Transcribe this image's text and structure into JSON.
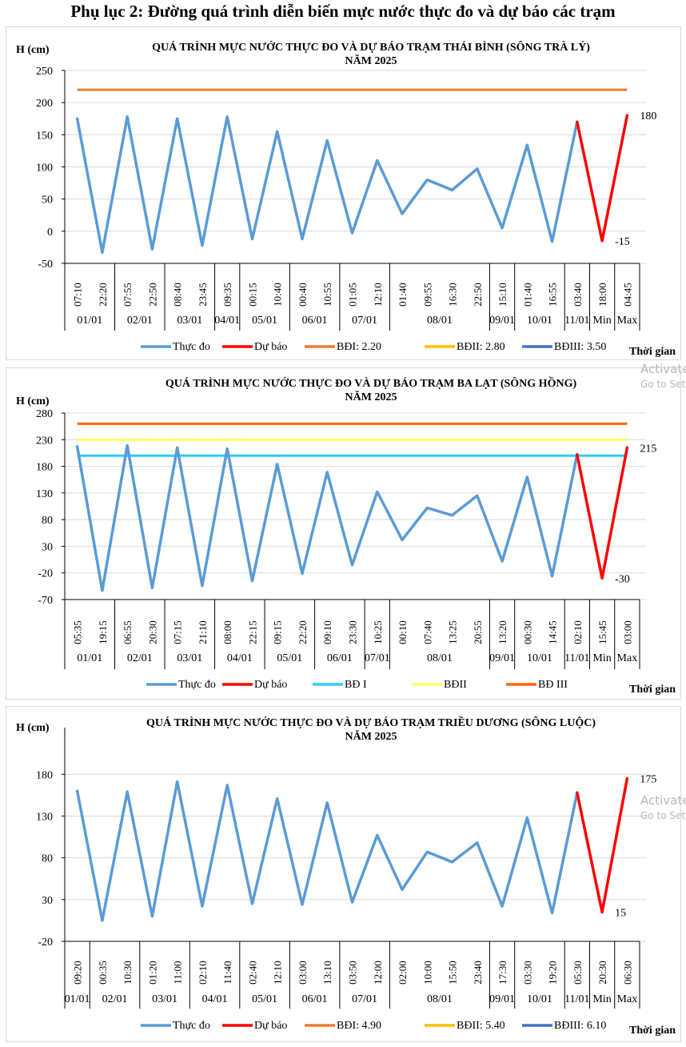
{
  "page_title": "Phụ lục 2: Đường quá trình diễn biến mực nước thực đo và dự báo các trạm",
  "watermark": {
    "line1": "Activate Windows",
    "line2": "Go to Settings to activate Windows."
  },
  "chart_data": [
    {
      "type": "line",
      "title_line1": "QUÁ TRÌNH MỰC NƯỚC THỰC ĐO VÀ DỰ BÁO TRẠM THÁI BÌNH (SÔNG TRÀ LÝ)",
      "title_line2": "NĂM 2025",
      "ylabel": "H (cm)",
      "xlabel": "Thời gian",
      "ylim": [
        -50,
        250
      ],
      "yticks": [
        250,
        200,
        150,
        100,
        50,
        0,
        -50
      ],
      "grid": true,
      "categories": [
        "07:10",
        "22:20",
        "07:55",
        "22:50",
        "08:40",
        "23:45",
        "09:35",
        "00:15",
        "10:40",
        "00:40",
        "10:55",
        "01:05",
        "12:10",
        "01:40",
        "09:55",
        "16:30",
        "22:50",
        "15:10",
        "01:40",
        "16:55",
        "03:40",
        "18:00",
        "04:45"
      ],
      "groups": [
        {
          "label": "01/01",
          "count": 2
        },
        {
          "label": "02/01",
          "count": 2
        },
        {
          "label": "03/01",
          "count": 2
        },
        {
          "label": "04/01",
          "count": 1
        },
        {
          "label": "05/01",
          "count": 2
        },
        {
          "label": "06/01",
          "count": 2
        },
        {
          "label": "07/01",
          "count": 2
        },
        {
          "label": "08/01",
          "count": 4
        },
        {
          "label": "09/01",
          "count": 1
        },
        {
          "label": "10/01",
          "count": 2
        },
        {
          "label": "11/01",
          "count": 1
        },
        {
          "label": "Min",
          "count": 1
        },
        {
          "label": "Max",
          "count": 1
        }
      ],
      "series": [
        {
          "name": "Thực đo",
          "color": "#5b9bd5",
          "values": [
            175,
            -33,
            178,
            -28,
            175,
            -22,
            178,
            -12,
            155,
            -12,
            141,
            -3,
            110,
            27,
            80,
            64,
            97,
            5,
            134,
            -16,
            170,
            null,
            null
          ]
        },
        {
          "name": "Dự báo",
          "color": "#ff0000",
          "values": [
            null,
            null,
            null,
            null,
            null,
            null,
            null,
            null,
            null,
            null,
            null,
            null,
            null,
            null,
            null,
            null,
            null,
            null,
            null,
            null,
            170,
            -15,
            180
          ]
        }
      ],
      "hlines": [
        {
          "name": "BĐI: 2.20",
          "color": "#ed7d31",
          "value": 220,
          "shown": true
        },
        {
          "name": "BĐII: 2.80",
          "color": "#ffc000",
          "value": 280,
          "shown": false
        },
        {
          "name": "BĐIII: 3.50",
          "color": "#4472c4",
          "value": 350,
          "shown": false
        }
      ],
      "annotations": [
        {
          "text": "180",
          "category_index": 22,
          "value": 180,
          "position": "right"
        },
        {
          "text": "-15",
          "category_index": 21,
          "value": -15,
          "position": "right"
        }
      ],
      "legend": [
        "Thực đo",
        "Dự báo",
        "BĐI: 2.20",
        "BĐII: 2.80",
        "BĐIII: 3.50"
      ],
      "legend_position": "bottom"
    },
    {
      "type": "line",
      "title_line1": "QUÁ TRÌNH MỰC NƯỚC THỰC ĐO VÀ DỰ BÁO TRẠM BA LẠT (SÔNG HỒNG)",
      "title_line2": "NĂM 2025",
      "ylabel": "H (cm)",
      "xlabel": "Thời gian",
      "ylim": [
        -70,
        280
      ],
      "yticks": [
        280,
        230,
        180,
        130,
        80,
        30,
        -20,
        -70
      ],
      "grid": true,
      "categories": [
        "05:35",
        "19:15",
        "06:55",
        "20:30",
        "07:15",
        "21:10",
        "08:00",
        "22:15",
        "09:15",
        "22:20",
        "09:10",
        "23:30",
        "10:25",
        "00:10",
        "07:40",
        "13:25",
        "20:55",
        "13:20",
        "00:30",
        "14:45",
        "02:10",
        "15:45",
        "03:00"
      ],
      "groups": [
        {
          "label": "01/01",
          "count": 2
        },
        {
          "label": "02/01",
          "count": 2
        },
        {
          "label": "03/01",
          "count": 2
        },
        {
          "label": "04/01",
          "count": 2
        },
        {
          "label": "05/01",
          "count": 2
        },
        {
          "label": "06/01",
          "count": 2
        },
        {
          "label": "07/01",
          "count": 1
        },
        {
          "label": "08/01",
          "count": 4
        },
        {
          "label": "09/01",
          "count": 1
        },
        {
          "label": "10/01",
          "count": 2
        },
        {
          "label": "11/01",
          "count": 1
        },
        {
          "label": "Min",
          "count": 1
        },
        {
          "label": "Max",
          "count": 1
        }
      ],
      "series": [
        {
          "name": "Thực đo",
          "color": "#5b9bd5",
          "values": [
            217,
            -53,
            219,
            -48,
            215,
            -44,
            213,
            -35,
            184,
            -21,
            169,
            -5,
            132,
            42,
            102,
            88,
            125,
            2,
            160,
            -26,
            202,
            null,
            null
          ]
        },
        {
          "name": "Dự báo",
          "color": "#ff0000",
          "values": [
            null,
            null,
            null,
            null,
            null,
            null,
            null,
            null,
            null,
            null,
            null,
            null,
            null,
            null,
            null,
            null,
            null,
            null,
            null,
            null,
            202,
            -30,
            215
          ]
        }
      ],
      "hlines": [
        {
          "name": "BĐ I",
          "color": "#33ccff",
          "value": 200,
          "shown": true
        },
        {
          "name": "BĐII",
          "color": "#ffff66",
          "value": 230,
          "shown": true
        },
        {
          "name": "BĐ III",
          "color": "#ff6600",
          "value": 260,
          "shown": true
        }
      ],
      "annotations": [
        {
          "text": "215",
          "category_index": 22,
          "value": 215,
          "position": "right"
        },
        {
          "text": "-30",
          "category_index": 21,
          "value": -30,
          "position": "right"
        }
      ],
      "legend": [
        "Thực đo",
        "Dự báo",
        "BĐ I",
        "BĐII",
        "BĐ III"
      ],
      "legend_position": "bottom"
    },
    {
      "type": "line",
      "title_line1": "QUÁ TRÌNH MỰC NƯỚC THỰC ĐO VÀ DỰ BÁO TRẠM TRIỀU DƯƠNG (SÔNG LUỘC)",
      "title_line2": "NĂM 2025",
      "ylabel": "H (cm)",
      "xlabel": "Thời gian",
      "ylim": [
        -20,
        210
      ],
      "yticks": [
        180,
        130,
        80,
        30,
        -20
      ],
      "grid": true,
      "categories": [
        "09:20",
        "00:35",
        "10:30",
        "01:20",
        "11:00",
        "02:10",
        "11:40",
        "02:40",
        "12:10",
        "03:00",
        "13:10",
        "03:50",
        "12:00",
        "02:00",
        "10:00",
        "15:50",
        "23:40",
        "17:30",
        "03:30",
        "19:20",
        "05:30",
        "20:30",
        "06:30"
      ],
      "groups": [
        {
          "label": "01/01",
          "count": 1
        },
        {
          "label": "02/01",
          "count": 2
        },
        {
          "label": "03/01",
          "count": 2
        },
        {
          "label": "04/01",
          "count": 2
        },
        {
          "label": "05/01",
          "count": 2
        },
        {
          "label": "06/01",
          "count": 2
        },
        {
          "label": "07/01",
          "count": 2
        },
        {
          "label": "08/01",
          "count": 4
        },
        {
          "label": "09/01",
          "count": 1
        },
        {
          "label": "10/01",
          "count": 2
        },
        {
          "label": "11/01",
          "count": 1
        },
        {
          "label": "Min",
          "count": 1
        },
        {
          "label": "Max",
          "count": 1
        }
      ],
      "series": [
        {
          "name": "Thực đo",
          "color": "#5b9bd5",
          "values": [
            160,
            5,
            159,
            10,
            171,
            22,
            167,
            25,
            151,
            24,
            146,
            27,
            107,
            42,
            87,
            75,
            98,
            22,
            128,
            14,
            158,
            null,
            null
          ]
        },
        {
          "name": "Dự báo",
          "color": "#ff0000",
          "values": [
            null,
            null,
            null,
            null,
            null,
            null,
            null,
            null,
            null,
            null,
            null,
            null,
            null,
            null,
            null,
            null,
            null,
            null,
            null,
            null,
            158,
            15,
            175
          ]
        }
      ],
      "hlines": [
        {
          "name": "BĐI: 4.90",
          "color": "#ed7d31",
          "value": 490,
          "shown": false
        },
        {
          "name": "BĐII: 5.40",
          "color": "#ffc000",
          "value": 540,
          "shown": false
        },
        {
          "name": "BĐIII: 6.10",
          "color": "#4472c4",
          "value": 610,
          "shown": false
        }
      ],
      "annotations": [
        {
          "text": "175",
          "category_index": 22,
          "value": 175,
          "position": "right"
        },
        {
          "text": "15",
          "category_index": 21,
          "value": 15,
          "position": "right"
        }
      ],
      "legend": [
        "Thực đo",
        "Dự báo",
        "BĐI: 4.90",
        "BĐII: 5.40",
        "BĐIII: 6.10"
      ],
      "legend_position": "bottom"
    }
  ]
}
